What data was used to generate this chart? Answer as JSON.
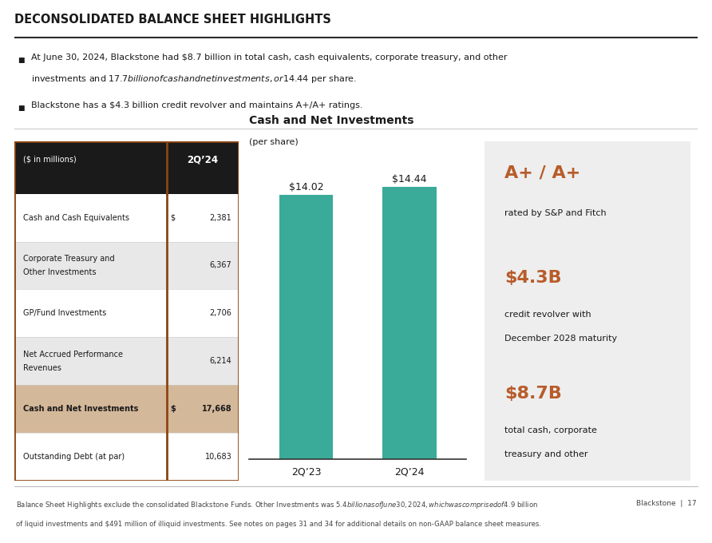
{
  "title": "DECONSOLIDATED BALANCE SHEET HIGHLIGHTS",
  "bullet1_parts": [
    "At June 30, 2024, Blackstone had ",
    "$8.7 billion",
    " in total cash, cash equivalents, corporate treasury, and other\ninvestments and ",
    "$17.7 billion",
    " of cash and net investments, or ",
    "$14.44",
    " per share."
  ],
  "bullet1_plain": "At June 30, 2024, Blackstone had $8.7 billion in total cash, cash equivalents, corporate treasury, and other investments and $17.7 billion of cash and net investments, or $14.44 per share.",
  "bullet2_plain": "Blackstone has a $4.3 billion credit revolver and maintains A+/A+ ratings.",
  "table_header_left": "($ in millions)",
  "table_header_right": "2Q’24",
  "table_rows": [
    {
      "label": "Cash and Cash Equivalents",
      "dollar": "$",
      "value": "2,381",
      "bold": false,
      "shaded": false
    },
    {
      "label": "Corporate Treasury and\nOther Investments",
      "dollar": "",
      "value": "6,367",
      "bold": false,
      "shaded": true
    },
    {
      "label": "GP/Fund Investments",
      "dollar": "",
      "value": "2,706",
      "bold": false,
      "shaded": false
    },
    {
      "label": "Net Accrued Performance\nRevenues",
      "dollar": "",
      "value": "6,214",
      "bold": false,
      "shaded": true
    },
    {
      "label": "Cash and Net Investments",
      "dollar": "$",
      "value": "17,668",
      "bold": true,
      "shaded": "tan"
    },
    {
      "label": "Outstanding Debt (at par)",
      "dollar": "",
      "value": "10,683",
      "bold": false,
      "shaded": false
    }
  ],
  "bar_title": "Cash and Net Investments",
  "bar_subtitle": "(per share)",
  "bar_categories": [
    "2Q’23",
    "2Q’24"
  ],
  "bar_values": [
    14.02,
    14.44
  ],
  "bar_labels": [
    "$14.02",
    "$14.44"
  ],
  "bar_color": "#3aab98",
  "bar_ylim": [
    0,
    16
  ],
  "highlight1_big": "A+ / A+",
  "highlight1_small": "rated by S&P and Fitch",
  "highlight2_big": "$4.3B",
  "highlight2_small1": "credit revolver with",
  "highlight2_small2": "December 2028 maturity",
  "highlight3_big": "$8.7B",
  "highlight3_small1": "total cash, corporate",
  "highlight3_small2": "treasury and other",
  "highlight_big_color": "#b85c2a",
  "highlight_bg_color": "#eeeeee",
  "footer": "Balance Sheet Highlights exclude the consolidated Blackstone Funds. Other Investments was $5.4 billion as of June 30, 2024, which was comprised of $4.9 billion",
  "footer2": "of liquid investments and $491 million of illiquid investments. See notes on pages 31 and 34 for additional details on non-GAAP balance sheet measures.",
  "footer_right": "Blackstone  |  17",
  "table_border_color": "#8B4513",
  "header_bg": "#1a1a1a",
  "header_text_color": "#ffffff",
  "shaded_bg": "#e8e8e8",
  "tan_bg": "#d4b89a",
  "white_bg": "#ffffff"
}
